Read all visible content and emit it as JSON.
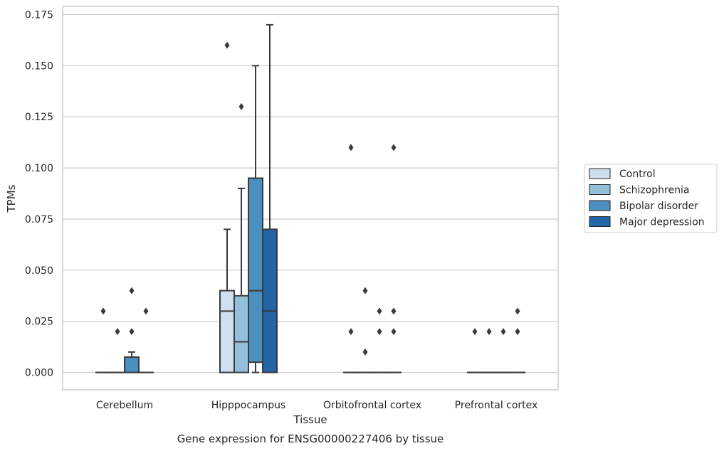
{
  "chart_data": {
    "type": "box",
    "xlabel": "Tissue",
    "ylabel": "TPMs",
    "caption": "Gene expression for ENSG00000227406 by tissue",
    "ylim": [
      -0.0085,
      0.179
    ],
    "yticks": [
      "0.000",
      "0.025",
      "0.050",
      "0.075",
      "0.100",
      "0.125",
      "0.150",
      "0.175"
    ],
    "ytick_values": [
      0,
      0.025,
      0.05,
      0.075,
      0.1,
      0.125,
      0.15,
      0.175
    ],
    "grid": "horizontal",
    "legend_position": "right",
    "categories": [
      "Cerebellum",
      "Hipppocampus",
      "Orbitofrontal cortex",
      "Prefrontal cortex"
    ],
    "series": [
      {
        "name": "Control",
        "color": "#cfdff0",
        "boxes": [
          {
            "q1": 0,
            "median": 0,
            "q3": 0,
            "whisker_low": 0,
            "whisker_high": 0,
            "outliers": [
              0.03
            ]
          },
          {
            "q1": 0,
            "median": 0.03,
            "q3": 0.04,
            "whisker_low": 0,
            "whisker_high": 0.07,
            "outliers": [
              0.16
            ]
          },
          {
            "q1": 0,
            "median": 0,
            "q3": 0,
            "whisker_low": 0,
            "whisker_high": 0,
            "outliers": [
              0.02,
              0.11
            ]
          },
          {
            "q1": 0,
            "median": 0,
            "q3": 0,
            "whisker_low": 0,
            "whisker_high": 0,
            "outliers": [
              0.02
            ]
          }
        ]
      },
      {
        "name": "Schizophrenia",
        "color": "#94c0dc",
        "boxes": [
          {
            "q1": 0,
            "median": 0,
            "q3": 0,
            "whisker_low": 0,
            "whisker_high": 0,
            "outliers": [
              0.02
            ]
          },
          {
            "q1": 0,
            "median": 0.015,
            "q3": 0.0375,
            "whisker_low": 0,
            "whisker_high": 0.09,
            "outliers": [
              0.13
            ]
          },
          {
            "q1": 0,
            "median": 0,
            "q3": 0,
            "whisker_low": 0,
            "whisker_high": 0,
            "outliers": [
              0.01,
              0.04
            ]
          },
          {
            "q1": 0,
            "median": 0,
            "q3": 0,
            "whisker_low": 0,
            "whisker_high": 0,
            "outliers": [
              0.02
            ]
          }
        ]
      },
      {
        "name": "Bipolar disorder",
        "color": "#4b8fc1",
        "boxes": [
          {
            "q1": 0,
            "median": 0,
            "q3": 0.0075,
            "whisker_low": 0,
            "whisker_high": 0.01,
            "outliers": [
              0.02,
              0.04
            ]
          },
          {
            "q1": 0.005,
            "median": 0.04,
            "q3": 0.095,
            "whisker_low": 0,
            "whisker_high": 0.15,
            "outliers": []
          },
          {
            "q1": 0,
            "median": 0,
            "q3": 0,
            "whisker_low": 0,
            "whisker_high": 0,
            "outliers": [
              0.02,
              0.03
            ]
          },
          {
            "q1": 0,
            "median": 0,
            "q3": 0,
            "whisker_low": 0,
            "whisker_high": 0,
            "outliers": [
              0.02
            ]
          }
        ]
      },
      {
        "name": "Major depression",
        "color": "#2266a8",
        "boxes": [
          {
            "q1": 0,
            "median": 0,
            "q3": 0,
            "whisker_low": 0,
            "whisker_high": 0,
            "outliers": [
              0.03
            ]
          },
          {
            "q1": 0,
            "median": 0.03,
            "q3": 0.07,
            "whisker_low": 0,
            "whisker_high": 0.17,
            "outliers": []
          },
          {
            "q1": 0,
            "median": 0,
            "q3": 0,
            "whisker_low": 0,
            "whisker_high": 0,
            "outliers": [
              0.02,
              0.03,
              0.11
            ]
          },
          {
            "q1": 0,
            "median": 0,
            "q3": 0,
            "whisker_low": 0,
            "whisker_high": 0,
            "outliers": [
              0.02,
              0.03
            ]
          }
        ]
      }
    ]
  }
}
